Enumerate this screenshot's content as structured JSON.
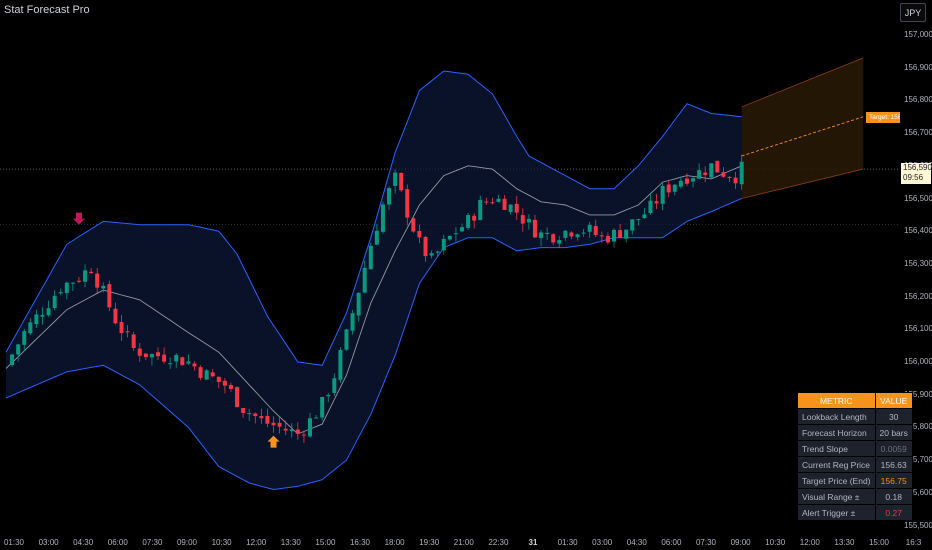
{
  "header": {
    "title": "Stat Forecast Pro",
    "currency_button": "JPY"
  },
  "price_label": {
    "price": "156,590",
    "time": "09:56"
  },
  "target_label": "Target: 156.75",
  "y_ticks": [
    "157,000",
    "156,900",
    "156,800",
    "156,700",
    "156,600",
    "156,500",
    "156,400",
    "156,300",
    "156,200",
    "156,100",
    "156,000",
    "155,900",
    "155,800",
    "155,700",
    "155,600",
    "155,500"
  ],
  "x_ticks": [
    {
      "label": "01:30",
      "bold": false
    },
    {
      "label": "03:00",
      "bold": false
    },
    {
      "label": "04:30",
      "bold": false
    },
    {
      "label": "06:00",
      "bold": false
    },
    {
      "label": "07:30",
      "bold": false
    },
    {
      "label": "09:00",
      "bold": false
    },
    {
      "label": "10:30",
      "bold": false
    },
    {
      "label": "12:00",
      "bold": false
    },
    {
      "label": "13:30",
      "bold": false
    },
    {
      "label": "15:00",
      "bold": false
    },
    {
      "label": "16:30",
      "bold": false
    },
    {
      "label": "18:00",
      "bold": false
    },
    {
      "label": "19:30",
      "bold": false
    },
    {
      "label": "21:00",
      "bold": false
    },
    {
      "label": "22:30",
      "bold": false
    },
    {
      "label": "31",
      "bold": true
    },
    {
      "label": "01:30",
      "bold": false
    },
    {
      "label": "03:00",
      "bold": false
    },
    {
      "label": "04:30",
      "bold": false
    },
    {
      "label": "06:00",
      "bold": false
    },
    {
      "label": "07:30",
      "bold": false
    },
    {
      "label": "09:00",
      "bold": false
    },
    {
      "label": "10:30",
      "bold": false
    },
    {
      "label": "12:00",
      "bold": false
    },
    {
      "label": "13:30",
      "bold": false
    },
    {
      "label": "15:00",
      "bold": false
    },
    {
      "label": "16:3",
      "bold": false
    }
  ],
  "metrics_table": {
    "headers": [
      "METRIC",
      "VALUE"
    ],
    "rows": [
      {
        "metric": "Lookback Length",
        "value": "30",
        "color": "#b2b5be"
      },
      {
        "metric": "Forecast Horizon",
        "value": "20 bars",
        "color": "#b2b5be"
      },
      {
        "metric": "Trend Slope",
        "value": "0.0059",
        "color": "#6a6f7b"
      },
      {
        "metric": "Current Reg Price",
        "value": "156.63",
        "color": "#b2b5be"
      },
      {
        "metric": "Target Price (End)",
        "value": "156.75",
        "color": "#f7931a"
      },
      {
        "metric": "Visual Range ±",
        "value": "0.18",
        "color": "#b2b5be"
      },
      {
        "metric": "Alert Trigger ±",
        "value": "0.27",
        "color": "#f23645"
      }
    ]
  },
  "chart_data": {
    "type": "candlestick",
    "symbol_currency": "JPY",
    "ylim": [
      155.44,
      157.06
    ],
    "current_price": 156.59,
    "colors": {
      "up": "#089981",
      "down": "#f23645",
      "band": "#2962ff",
      "mid": "#9598a1",
      "forecast": "#f7931a"
    },
    "close_path": [
      [
        0,
        155.99
      ],
      [
        3,
        156.09
      ],
      [
        6,
        156.16
      ],
      [
        9,
        156.23
      ],
      [
        12,
        156.26
      ],
      [
        14,
        156.29
      ],
      [
        16,
        156.21
      ],
      [
        18,
        156.13
      ],
      [
        21,
        156.04
      ],
      [
        24,
        156.02
      ],
      [
        27,
        156.02
      ],
      [
        30,
        156.0
      ],
      [
        33,
        155.96
      ],
      [
        36,
        155.93
      ],
      [
        39,
        155.86
      ],
      [
        42,
        155.82
      ],
      [
        45,
        155.8
      ],
      [
        48,
        155.78
      ],
      [
        50,
        155.82
      ],
      [
        52,
        155.87
      ],
      [
        54,
        155.96
      ],
      [
        56,
        156.08
      ],
      [
        58,
        156.22
      ],
      [
        60,
        156.36
      ],
      [
        62,
        156.48
      ],
      [
        64,
        156.56
      ],
      [
        66,
        156.46
      ],
      [
        68,
        156.36
      ],
      [
        70,
        156.31
      ],
      [
        72,
        156.36
      ],
      [
        74,
        156.4
      ],
      [
        76,
        156.43
      ],
      [
        78,
        156.48
      ],
      [
        80,
        156.5
      ],
      [
        82,
        156.49
      ],
      [
        84,
        156.46
      ],
      [
        86,
        156.42
      ],
      [
        88,
        156.39
      ],
      [
        90,
        156.39
      ],
      [
        92,
        156.4
      ],
      [
        94,
        156.41
      ],
      [
        96,
        156.4
      ],
      [
        98,
        156.38
      ],
      [
        100,
        156.39
      ],
      [
        102,
        156.41
      ],
      [
        104,
        156.44
      ],
      [
        106,
        156.47
      ],
      [
        108,
        156.52
      ],
      [
        110,
        156.55
      ],
      [
        112,
        156.57
      ],
      [
        114,
        156.58
      ],
      [
        116,
        156.6
      ],
      [
        118,
        156.58
      ],
      [
        120,
        156.57
      ],
      [
        121,
        156.59
      ]
    ],
    "bands": {
      "upper": [
        [
          0,
          156.03
        ],
        [
          10,
          156.36
        ],
        [
          16,
          156.43
        ],
        [
          22,
          156.42
        ],
        [
          30,
          156.42
        ],
        [
          35,
          156.4
        ],
        [
          38,
          156.33
        ],
        [
          43,
          156.14
        ],
        [
          48,
          156.0
        ],
        [
          52,
          155.99
        ],
        [
          56,
          156.15
        ],
        [
          60,
          156.38
        ],
        [
          64,
          156.64
        ],
        [
          68,
          156.83
        ],
        [
          72,
          156.89
        ],
        [
          76,
          156.88
        ],
        [
          80,
          156.82
        ],
        [
          84,
          156.69
        ],
        [
          86,
          156.63
        ],
        [
          90,
          156.59
        ],
        [
          96,
          156.53
        ],
        [
          100,
          156.53
        ],
        [
          104,
          156.6
        ],
        [
          108,
          156.69
        ],
        [
          112,
          156.79
        ],
        [
          116,
          156.76
        ],
        [
          121,
          156.75
        ]
      ],
      "middle": [
        [
          0,
          155.98
        ],
        [
          10,
          156.16
        ],
        [
          16,
          156.22
        ],
        [
          22,
          156.19
        ],
        [
          30,
          156.09
        ],
        [
          35,
          156.03
        ],
        [
          40,
          155.93
        ],
        [
          44,
          155.85
        ],
        [
          48,
          155.78
        ],
        [
          52,
          155.81
        ],
        [
          56,
          155.96
        ],
        [
          60,
          156.18
        ],
        [
          64,
          156.34
        ],
        [
          68,
          156.48
        ],
        [
          72,
          156.57
        ],
        [
          76,
          156.6
        ],
        [
          80,
          156.59
        ],
        [
          84,
          156.53
        ],
        [
          88,
          156.49
        ],
        [
          92,
          156.48
        ],
        [
          96,
          156.45
        ],
        [
          100,
          156.45
        ],
        [
          104,
          156.48
        ],
        [
          108,
          156.55
        ],
        [
          112,
          156.57
        ],
        [
          116,
          156.56
        ],
        [
          121,
          156.6
        ]
      ],
      "lower": [
        [
          0,
          155.89
        ],
        [
          10,
          155.97
        ],
        [
          16,
          155.99
        ],
        [
          22,
          155.93
        ],
        [
          30,
          155.8
        ],
        [
          35,
          155.68
        ],
        [
          40,
          155.63
        ],
        [
          44,
          155.61
        ],
        [
          48,
          155.62
        ],
        [
          52,
          155.64
        ],
        [
          56,
          155.7
        ],
        [
          60,
          155.84
        ],
        [
          64,
          156.02
        ],
        [
          68,
          156.24
        ],
        [
          72,
          156.35
        ],
        [
          76,
          156.38
        ],
        [
          80,
          156.38
        ],
        [
          84,
          156.34
        ],
        [
          88,
          156.35
        ],
        [
          92,
          156.35
        ],
        [
          96,
          156.36
        ],
        [
          100,
          156.38
        ],
        [
          104,
          156.38
        ],
        [
          108,
          156.38
        ],
        [
          112,
          156.43
        ],
        [
          116,
          156.46
        ],
        [
          121,
          156.5
        ]
      ]
    },
    "forecast": {
      "bars": 20,
      "start_price": 156.63,
      "target_price": 156.75,
      "upper_start": 156.78,
      "upper_end": 156.93,
      "lower_start": 156.5,
      "lower_end": 156.59
    },
    "signals": [
      {
        "type": "sell",
        "bar": 12,
        "price": 156.42
      },
      {
        "type": "buy",
        "bar": 44,
        "price": 155.79
      }
    ],
    "horizontal_lines": [
      156.59,
      156.42
    ]
  }
}
